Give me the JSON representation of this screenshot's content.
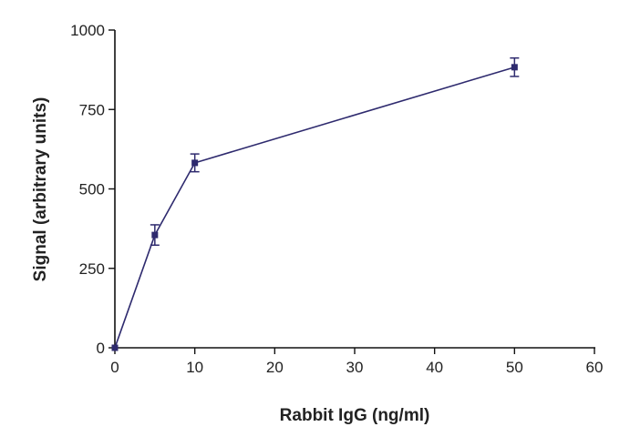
{
  "chart_data": {
    "type": "line",
    "title": "",
    "xlabel": "Rabbit IgG (ng/ml)",
    "ylabel": "Signal (arbitrary units)",
    "xlim": [
      0,
      60
    ],
    "ylim": [
      0,
      1000
    ],
    "x_ticks": [
      0,
      10,
      20,
      30,
      40,
      50,
      60
    ],
    "y_ticks": [
      0,
      250,
      500,
      750,
      1000
    ],
    "x_tick_labels": [
      "0",
      "10",
      "20",
      "30",
      "40",
      "50",
      "60"
    ],
    "y_tick_labels": [
      "0",
      "250",
      "500",
      "750",
      "1000"
    ],
    "grid": false,
    "series": [
      {
        "x": [
          0,
          5,
          10,
          50
        ],
        "y": [
          0,
          355,
          582,
          883
        ],
        "error": [
          0,
          32,
          28,
          29
        ],
        "color": "#2e2a6e",
        "marker": "square"
      }
    ]
  }
}
